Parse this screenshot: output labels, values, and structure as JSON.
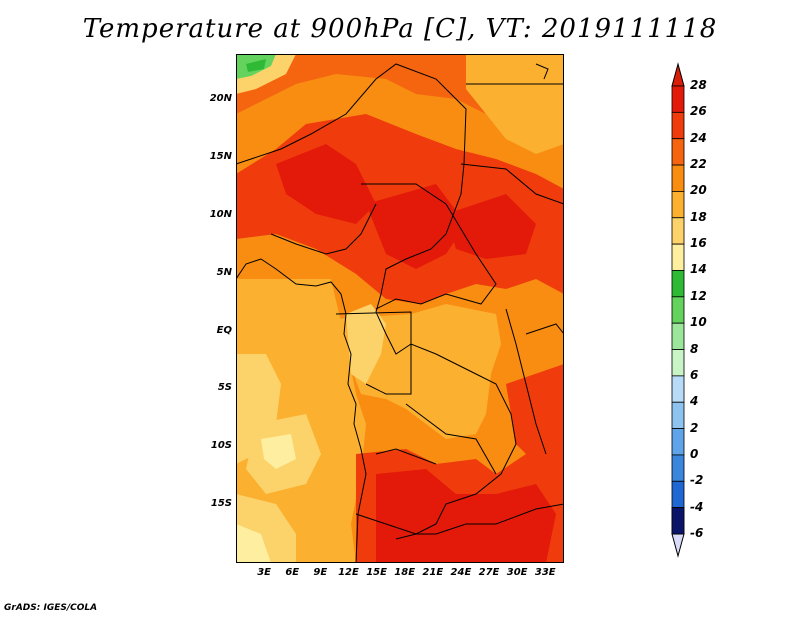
{
  "title": "Temperature at 900hPa [C], VT: 2019111118",
  "footer": "GrADS: IGES/COLA",
  "map": {
    "region": "Central Africa",
    "field": "Temperature at 900hPa",
    "units": "C",
    "valid_time": "2019111118",
    "lon_range": [
      0,
      35
    ],
    "lat_range": [
      -20,
      24
    ],
    "lat_ticks": [
      {
        "value": 20,
        "label": "20N"
      },
      {
        "value": 15,
        "label": "15N"
      },
      {
        "value": 10,
        "label": "10N"
      },
      {
        "value": 5,
        "label": "5N"
      },
      {
        "value": 0,
        "label": "EQ"
      },
      {
        "value": -5,
        "label": "5S"
      },
      {
        "value": -10,
        "label": "10S"
      },
      {
        "value": -15,
        "label": "15S"
      }
    ],
    "lon_ticks": [
      {
        "value": 3,
        "label": "3E"
      },
      {
        "value": 6,
        "label": "6E"
      },
      {
        "value": 9,
        "label": "9E"
      },
      {
        "value": 12,
        "label": "12E"
      },
      {
        "value": 15,
        "label": "15E"
      },
      {
        "value": 18,
        "label": "18E"
      },
      {
        "value": 21,
        "label": "21E"
      },
      {
        "value": 24,
        "label": "24E"
      },
      {
        "value": 27,
        "label": "27E"
      },
      {
        "value": 30,
        "label": "30E"
      },
      {
        "value": 33,
        "label": "33E"
      }
    ]
  },
  "colorbar": {
    "levels": [
      {
        "label": "28",
        "color": "#e31a0a"
      },
      {
        "label": "26",
        "color": "#f03c0c"
      },
      {
        "label": "24",
        "color": "#f5650f"
      },
      {
        "label": "22",
        "color": "#f88d12"
      },
      {
        "label": "20",
        "color": "#fbb030"
      },
      {
        "label": "18",
        "color": "#fcd36a"
      },
      {
        "label": "16",
        "color": "#fdeea0"
      },
      {
        "label": "14",
        "color": "#2fba35"
      },
      {
        "label": "12",
        "color": "#63d35e"
      },
      {
        "label": "10",
        "color": "#9be69a"
      },
      {
        "label": "8",
        "color": "#c9f4c6"
      },
      {
        "label": "6",
        "color": "#b8dcf8"
      },
      {
        "label": "4",
        "color": "#8ec3f0"
      },
      {
        "label": "2",
        "color": "#5fa4e8"
      },
      {
        "label": "0",
        "color": "#3a86dd"
      },
      {
        "label": "-2",
        "color": "#1f68d4"
      },
      {
        "label": "-4",
        "color": "#0d48b9"
      },
      {
        "label": "-6",
        "color": "#062a95"
      }
    ],
    "top_color": "#d81e08",
    "bottom_color": "#0a1468",
    "under_color": "#d8dcf8"
  }
}
